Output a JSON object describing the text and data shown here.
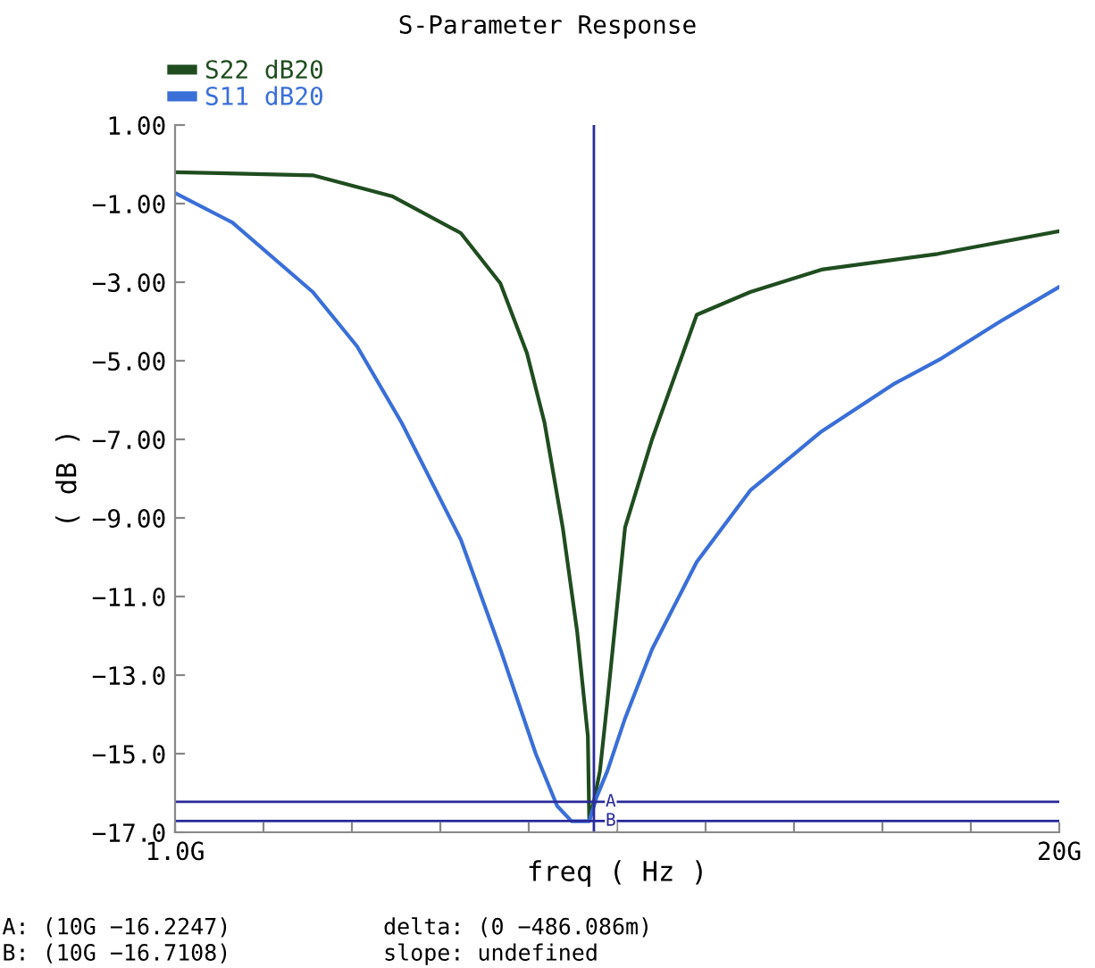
{
  "chart_data": {
    "type": "line",
    "title": "S-Parameter Response",
    "xlabel": "freq ( Hz )",
    "ylabel": "( dB )",
    "series": [
      {
        "name": "S22 dB20",
        "color": "#1f4d1f",
        "x": [
          1.0,
          3.96,
          5.68,
          7.14,
          7.99,
          8.56,
          8.94,
          9.33,
          9.64,
          9.87,
          9.9,
          10.0,
          10.13,
          10.29,
          10.67,
          11.25,
          12.21,
          13.36,
          14.89,
          17.39,
          20.0
        ],
        "values": [
          -0.2,
          -0.28,
          -0.82,
          -1.75,
          -3.03,
          -4.8,
          -6.58,
          -9.24,
          -11.89,
          -14.55,
          -16.7,
          -16.22,
          -15.44,
          -13.67,
          -9.24,
          -7.0,
          -3.83,
          -3.25,
          -2.68,
          -2.28,
          -1.7
        ]
      },
      {
        "name": "S11 dB20",
        "color": "#3a6fd8",
        "x": [
          1.0,
          2.23,
          3.96,
          4.91,
          5.87,
          7.14,
          7.99,
          8.75,
          9.21,
          9.52,
          9.9,
          10.06,
          10.29,
          10.67,
          11.25,
          12.21,
          13.36,
          14.89,
          16.43,
          17.47,
          18.73,
          20.0
        ],
        "values": [
          -0.73,
          -1.48,
          -3.25,
          -4.63,
          -6.58,
          -9.55,
          -12.34,
          -15.0,
          -16.33,
          -16.72,
          -16.72,
          -16.1,
          -15.44,
          -14.1,
          -12.34,
          -10.12,
          -8.3,
          -6.8,
          -5.6,
          -4.94,
          -4.0,
          -3.12
        ]
      }
    ],
    "xlim": [
      1,
      20
    ],
    "xticks": [
      {
        "value": 1,
        "label": "1.0G"
      },
      {
        "value": 2.9,
        "label": null
      },
      {
        "value": 4.8,
        "label": null
      },
      {
        "value": 6.7,
        "label": null
      },
      {
        "value": 8.6,
        "label": null
      },
      {
        "value": 10.5,
        "label": null
      },
      {
        "value": 12.4,
        "label": null
      },
      {
        "value": 14.3,
        "label": null
      },
      {
        "value": 16.2,
        "label": null
      },
      {
        "value": 18.1,
        "label": null
      },
      {
        "value": 20,
        "label": "20G"
      }
    ],
    "ylim": [
      -17,
      1
    ],
    "yticks": [
      {
        "value": 1,
        "label": "1.00"
      },
      {
        "value": -1,
        "label": "−1.00"
      },
      {
        "value": -3,
        "label": "−3.00"
      },
      {
        "value": -5,
        "label": "−5.00"
      },
      {
        "value": -7,
        "label": "−7.00"
      },
      {
        "value": -9,
        "label": "−9.00"
      },
      {
        "value": -11,
        "label": "−11.0"
      },
      {
        "value": -13,
        "label": "−13.0"
      },
      {
        "value": -15,
        "label": "−15.0"
      },
      {
        "value": -17,
        "label": "−17.0"
      }
    ],
    "ref_lines": [
      {
        "axis": "x",
        "value": 10,
        "color": "#2a2a9a"
      },
      {
        "axis": "y",
        "value": -16.2247,
        "label": "A",
        "color": "#2a2a9a"
      },
      {
        "axis": "y",
        "value": -16.7108,
        "label": "B",
        "color": "#2a2a9a"
      }
    ],
    "legend": "top left",
    "annotations": [
      "A: (10G −16.2247)",
      "B: (10G −16.7108)",
      "delta: (0 −486.086m)",
      "slope: undefined"
    ]
  }
}
